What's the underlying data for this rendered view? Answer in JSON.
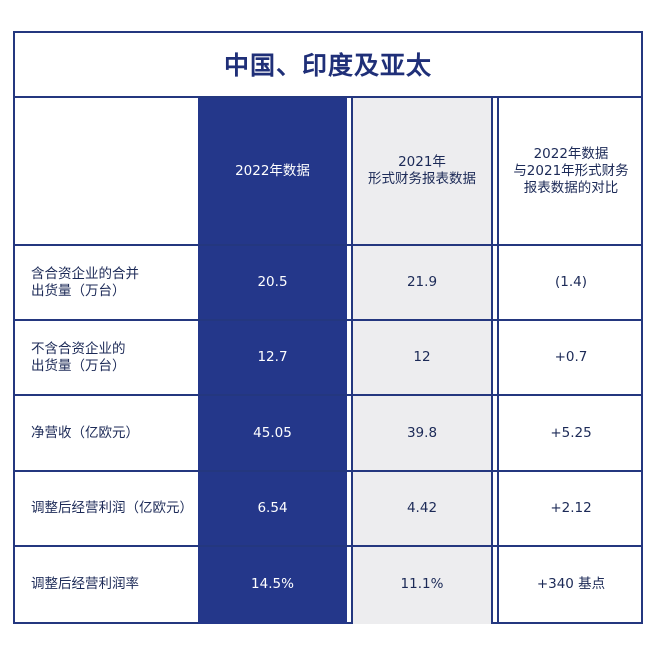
{
  "title": "中国、印度及亚太",
  "headers": {
    "col_2022": "2022年数据",
    "col_2021": "2021年\n形式财务报表数据",
    "col_compare": "2022年数据\n与2021年形式财务\n报表数据的对比"
  },
  "rows": [
    {
      "label": "含合资企业的合并\n出货量（万台）",
      "v2022": "20.5",
      "v2021": "21.9",
      "compare": "(1.4)"
    },
    {
      "label": "不含合资企业的\n出货量（万台）",
      "v2022": "12.7",
      "v2021": "12",
      "compare": "+0.7"
    },
    {
      "label": "净营收（亿欧元）",
      "v2022": "45.05",
      "v2021": "39.8",
      "compare": "+5.25"
    },
    {
      "label": "调整后经营利润（亿欧元）",
      "v2022": "6.54",
      "v2021": "4.42",
      "compare": "+2.12"
    },
    {
      "label": "调整后经营利润率",
      "v2022": "14.5%",
      "v2021": "11.1%",
      "compare": "+340  基点"
    }
  ],
  "colors": {
    "navy": "#24378a",
    "border": "#24377f",
    "grey": "#ededef",
    "text": "#1c2a57"
  }
}
